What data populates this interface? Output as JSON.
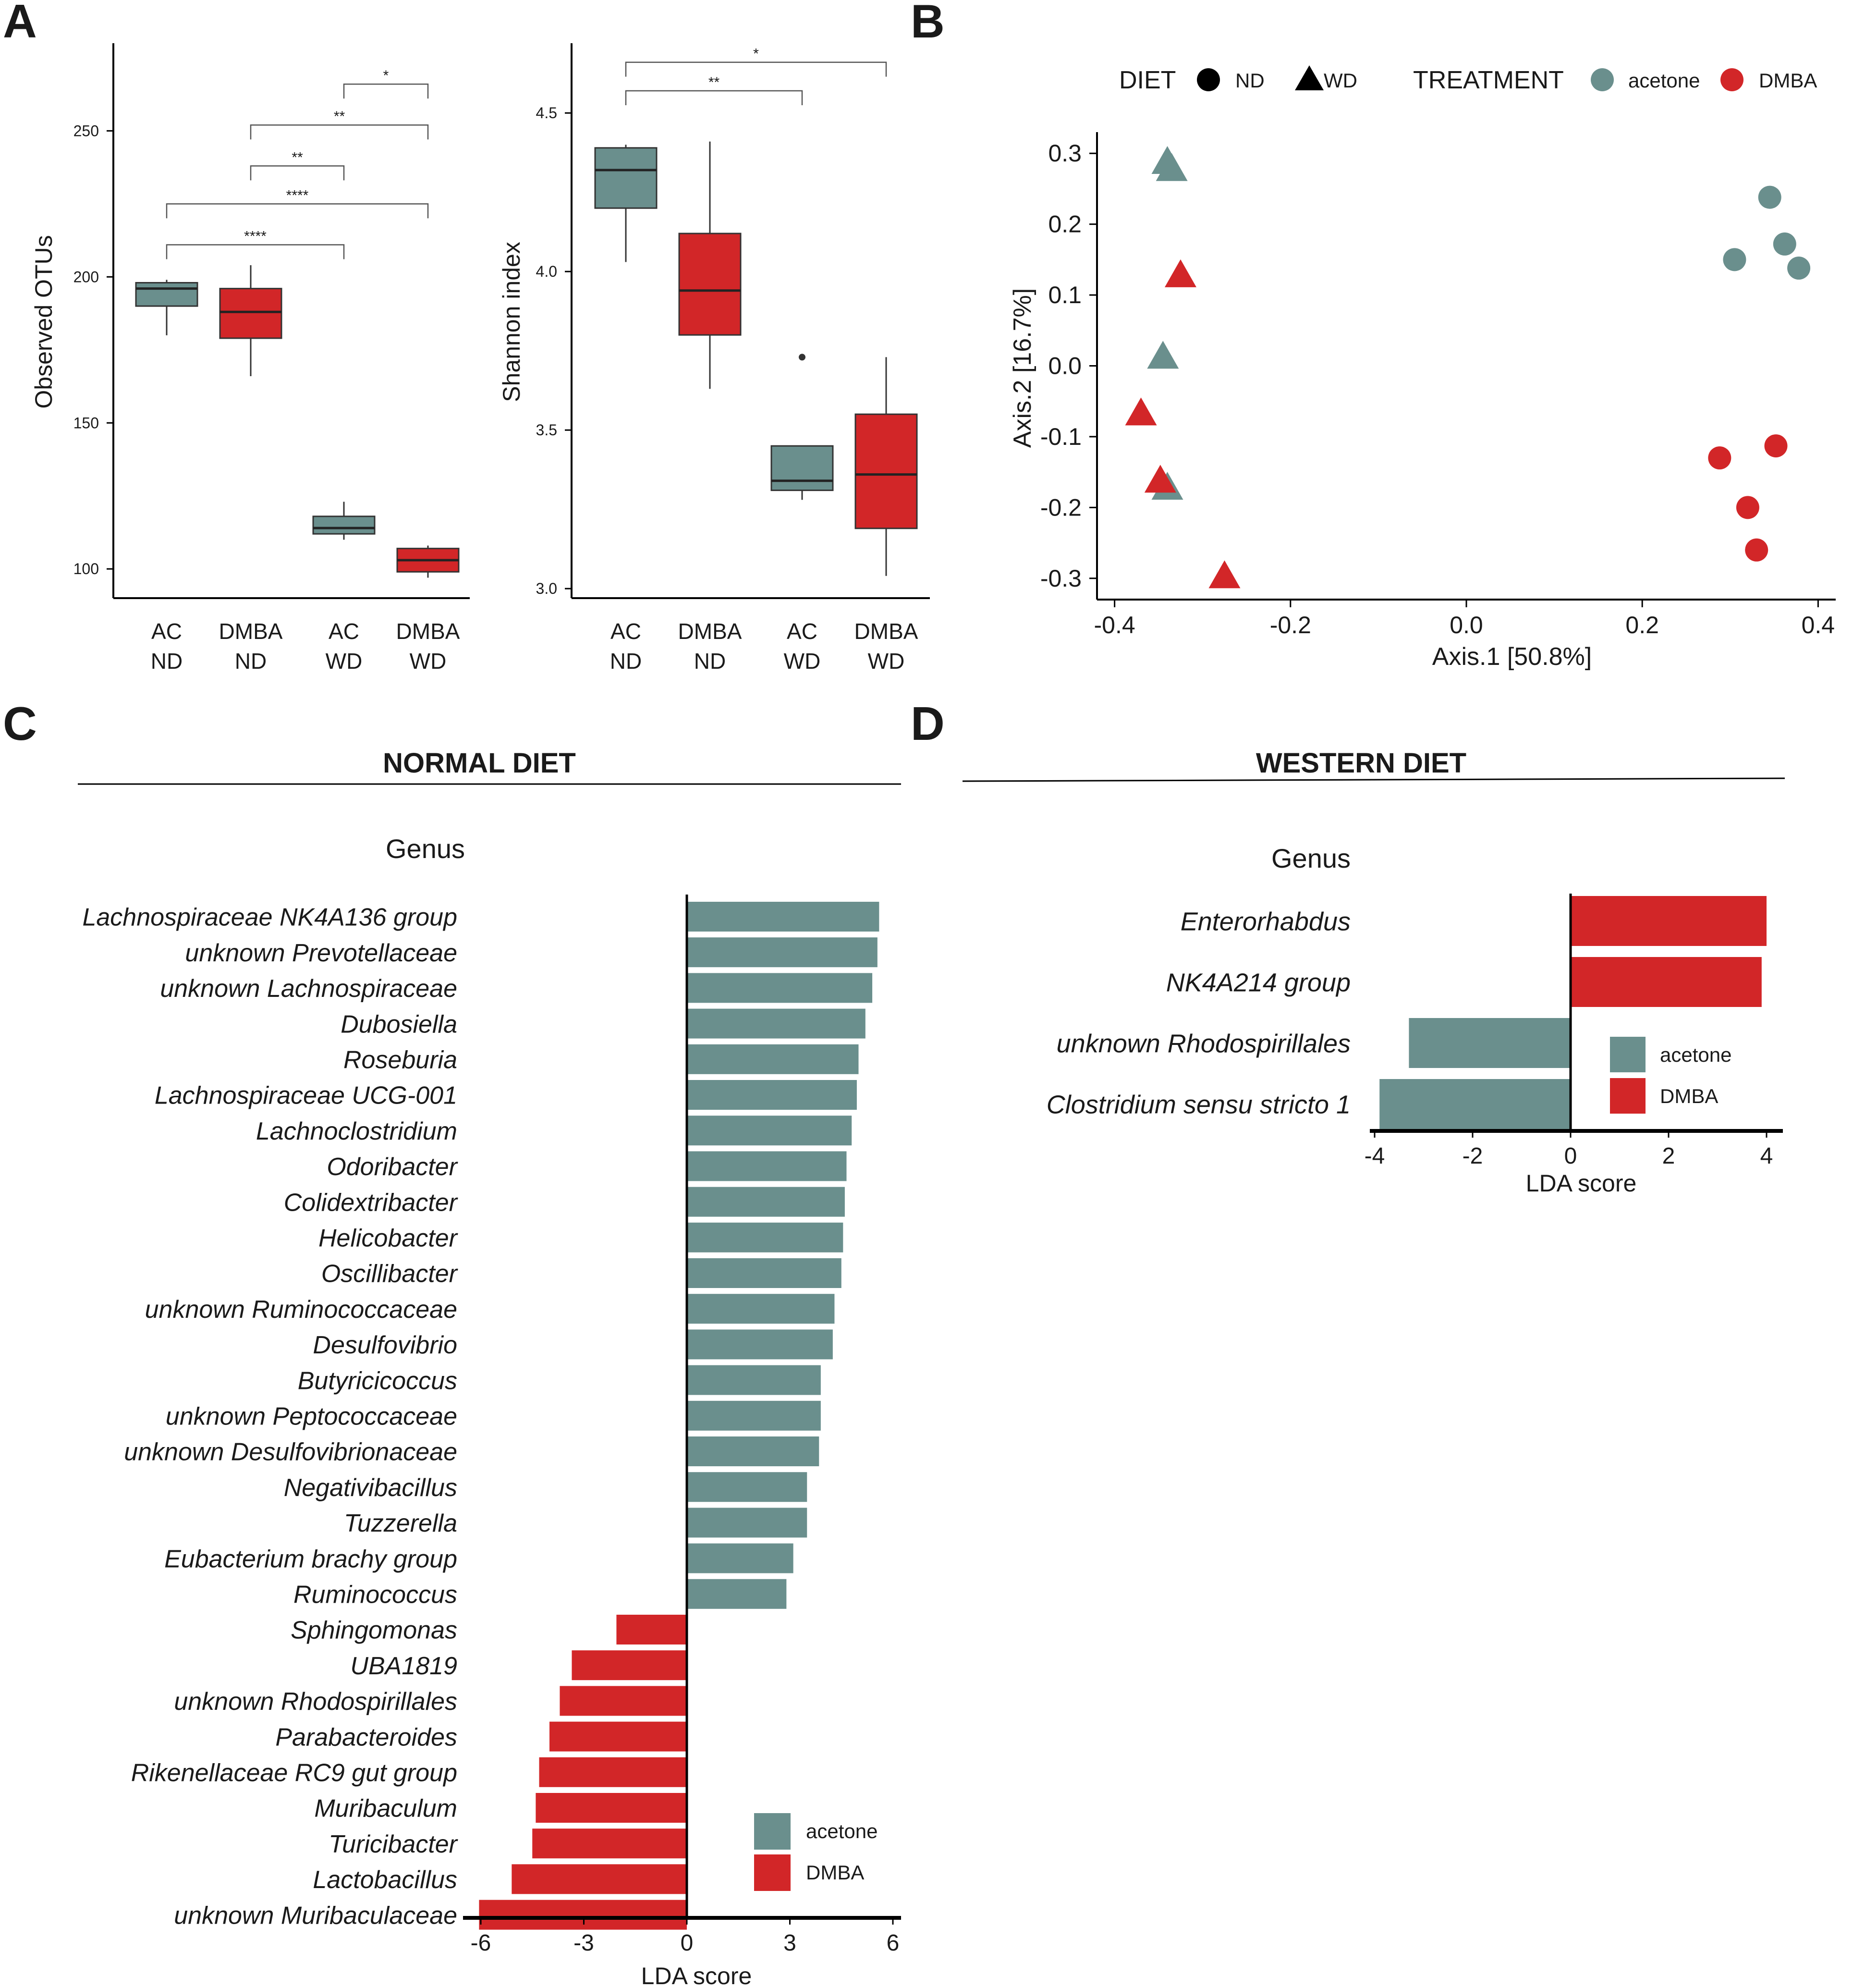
{
  "colors": {
    "acetone": "#6a8f8d",
    "DMBA": "#d22628",
    "axis": "#000000",
    "text": "#1a1a1a"
  },
  "panel_letters": [
    "A",
    "B",
    "C",
    "D"
  ],
  "chart_data": [
    {
      "panel": "A-left",
      "type": "box",
      "ylabel": "Observed OTUs",
      "ylim": [
        90,
        280
      ],
      "yticks": [
        100,
        150,
        200,
        250
      ],
      "categories": [
        "AC\nND",
        "DMBA\nND",
        "AC\nWD",
        "DMBA\nWD"
      ],
      "category_lines": [
        [
          "AC",
          "ND"
        ],
        [
          "DMBA",
          "ND"
        ],
        [
          "AC",
          "WD"
        ],
        [
          "DMBA",
          "WD"
        ]
      ],
      "groups": [
        "acetone",
        "DMBA",
        "acetone",
        "DMBA"
      ],
      "boxes": [
        {
          "min": 180,
          "q1": 190,
          "median": 196,
          "q3": 198,
          "max": 199
        },
        {
          "min": 166,
          "q1": 179,
          "median": 188,
          "q3": 196,
          "max": 204
        },
        {
          "min": 110,
          "q1": 112,
          "median": 114,
          "q3": 118,
          "max": 123
        },
        {
          "min": 97,
          "q1": 99,
          "median": 103,
          "q3": 107,
          "max": 108
        }
      ],
      "outliers": [],
      "significance": [
        {
          "from": 2,
          "to": 3,
          "label": "*",
          "level": 266
        },
        {
          "from": 1,
          "to": 3,
          "label": "**",
          "level": 252
        },
        {
          "from": 1,
          "to": 2,
          "label": "**",
          "level": 238
        },
        {
          "from": 0,
          "to": 3,
          "label": "****",
          "level": 225
        },
        {
          "from": 0,
          "to": 2,
          "label": "****",
          "level": 211
        }
      ]
    },
    {
      "panel": "A-right",
      "type": "box",
      "ylabel": "Shannon index",
      "ylim": [
        2.97,
        4.72
      ],
      "yticks": [
        "3.0",
        "3.5",
        "4.0",
        "4.5"
      ],
      "categories": [
        "AC\nND",
        "DMBA\nND",
        "AC\nWD",
        "DMBA\nWD"
      ],
      "category_lines": [
        [
          "AC",
          "ND"
        ],
        [
          "DMBA",
          "ND"
        ],
        [
          "AC",
          "WD"
        ],
        [
          "DMBA",
          "WD"
        ]
      ],
      "groups": [
        "acetone",
        "DMBA",
        "acetone",
        "DMBA"
      ],
      "boxes": [
        {
          "min": 4.03,
          "q1": 4.2,
          "median": 4.32,
          "q3": 4.39,
          "max": 4.4
        },
        {
          "min": 3.63,
          "q1": 3.8,
          "median": 3.94,
          "q3": 4.12,
          "max": 4.41
        },
        {
          "min": 3.28,
          "q1": 3.31,
          "median": 3.34,
          "q3": 3.45,
          "max": 3.45
        },
        {
          "min": 3.04,
          "q1": 3.19,
          "median": 3.36,
          "q3": 3.55,
          "max": 3.73
        }
      ],
      "outliers": [
        {
          "index": 2,
          "value": 3.73
        }
      ],
      "significance": [
        {
          "from": 0,
          "to": 3,
          "label": "*",
          "level": 4.66
        },
        {
          "from": 0,
          "to": 2,
          "label": "**",
          "level": 4.57
        }
      ]
    },
    {
      "panel": "B",
      "type": "scatter",
      "xlabel": "Axis.1   [50.8%]",
      "ylabel": "Axis.2   [16.7%]",
      "xlim": [
        -0.42,
        0.42
      ],
      "ylim": [
        -0.33,
        0.33
      ],
      "xticks": [
        "-0.4",
        "-0.2",
        "0.0",
        "0.2",
        "0.4"
      ],
      "yticks": [
        "-0.3",
        "-0.2",
        "-0.1",
        "0.0",
        "0.1",
        "0.2",
        "0.3"
      ],
      "legend": {
        "diet_title": "DIET",
        "diet_items": [
          "ND",
          "WD"
        ],
        "treatment_title": "TREATMENT",
        "treatment_items": [
          "acetone",
          "DMBA"
        ]
      },
      "points": [
        {
          "x": -0.34,
          "y": 0.29,
          "shape": "triangle",
          "group": "acetone"
        },
        {
          "x": -0.335,
          "y": 0.28,
          "shape": "triangle",
          "group": "acetone"
        },
        {
          "x": -0.345,
          "y": 0.015,
          "shape": "triangle",
          "group": "acetone"
        },
        {
          "x": -0.34,
          "y": -0.17,
          "shape": "triangle",
          "group": "acetone"
        },
        {
          "x": -0.325,
          "y": 0.13,
          "shape": "triangle",
          "group": "DMBA"
        },
        {
          "x": -0.37,
          "y": -0.065,
          "shape": "triangle",
          "group": "DMBA"
        },
        {
          "x": -0.348,
          "y": -0.16,
          "shape": "triangle",
          "group": "DMBA"
        },
        {
          "x": -0.275,
          "y": -0.295,
          "shape": "triangle",
          "group": "DMBA"
        },
        {
          "x": 0.305,
          "y": 0.15,
          "shape": "circle",
          "group": "acetone"
        },
        {
          "x": 0.345,
          "y": 0.238,
          "shape": "circle",
          "group": "acetone"
        },
        {
          "x": 0.362,
          "y": 0.172,
          "shape": "circle",
          "group": "acetone"
        },
        {
          "x": 0.378,
          "y": 0.138,
          "shape": "circle",
          "group": "acetone"
        },
        {
          "x": 0.288,
          "y": -0.13,
          "shape": "circle",
          "group": "DMBA"
        },
        {
          "x": 0.352,
          "y": -0.113,
          "shape": "circle",
          "group": "DMBA"
        },
        {
          "x": 0.32,
          "y": -0.2,
          "shape": "circle",
          "group": "DMBA"
        },
        {
          "x": 0.33,
          "y": -0.26,
          "shape": "circle",
          "group": "DMBA"
        }
      ]
    },
    {
      "panel": "C",
      "type": "bar",
      "orientation": "horizontal",
      "title": "NORMAL DIET",
      "y_title": "Genus",
      "xlabel": "LDA score",
      "xlim": [
        -6.5,
        6.5
      ],
      "xticks": [
        "-6",
        "-3",
        "0",
        "3",
        "6"
      ],
      "legend_items": [
        "acetone",
        "DMBA"
      ],
      "categories": [
        "Lachnospiraceae NK4A136 group",
        "unknown Prevotellaceae",
        "unknown Lachnospiraceae",
        "Dubosiella",
        "Roseburia",
        "Lachnospiraceae UCG-001",
        "Lachnoclostridium",
        "Odoribacter",
        "Colidextribacter",
        "Helicobacter",
        "Oscillibacter",
        "unknown Ruminococcaceae",
        "Desulfovibrio",
        "Butyricicoccus",
        "unknown Peptococcaceae",
        "unknown Desulfovibrionaceae",
        "Negativibacillus",
        "Tuzzerella",
        "Eubacterium brachy group",
        "Ruminococcus",
        "Sphingomonas",
        "UBA1819",
        "unknown Rhodospirillales",
        "Parabacteroides",
        "Rikenellaceae RC9 gut group",
        "Muribaculum",
        "Turicibacter",
        "Lactobacillus",
        "unknown Muribaculaceae"
      ],
      "values": [
        5.6,
        5.55,
        5.4,
        5.2,
        5.0,
        4.95,
        4.8,
        4.65,
        4.6,
        4.55,
        4.5,
        4.3,
        4.25,
        3.9,
        3.9,
        3.85,
        3.5,
        3.5,
        3.1,
        2.9,
        -2.05,
        -3.35,
        -3.7,
        -4.0,
        -4.3,
        -4.4,
        -4.5,
        -5.1,
        -6.05
      ],
      "groups": [
        "acetone",
        "acetone",
        "acetone",
        "acetone",
        "acetone",
        "acetone",
        "acetone",
        "acetone",
        "acetone",
        "acetone",
        "acetone",
        "acetone",
        "acetone",
        "acetone",
        "acetone",
        "acetone",
        "acetone",
        "acetone",
        "acetone",
        "acetone",
        "DMBA",
        "DMBA",
        "DMBA",
        "DMBA",
        "DMBA",
        "DMBA",
        "DMBA",
        "DMBA",
        "DMBA"
      ]
    },
    {
      "panel": "D",
      "type": "bar",
      "orientation": "horizontal",
      "title": "WESTERN DIET",
      "y_title": "Genus",
      "xlabel": "LDA score",
      "xlim": [
        -4.3,
        4.3
      ],
      "xticks": [
        "-4",
        "-2",
        "0",
        "2",
        "4"
      ],
      "legend_items": [
        "acetone",
        "DMBA"
      ],
      "categories": [
        "Enterorhabdus",
        "NK4A214 group",
        "unknown Rhodospirillales",
        "Clostridium sensu stricto 1"
      ],
      "values": [
        4.0,
        3.9,
        -3.3,
        -3.9
      ],
      "groups": [
        "DMBA",
        "DMBA",
        "acetone",
        "acetone"
      ]
    }
  ]
}
